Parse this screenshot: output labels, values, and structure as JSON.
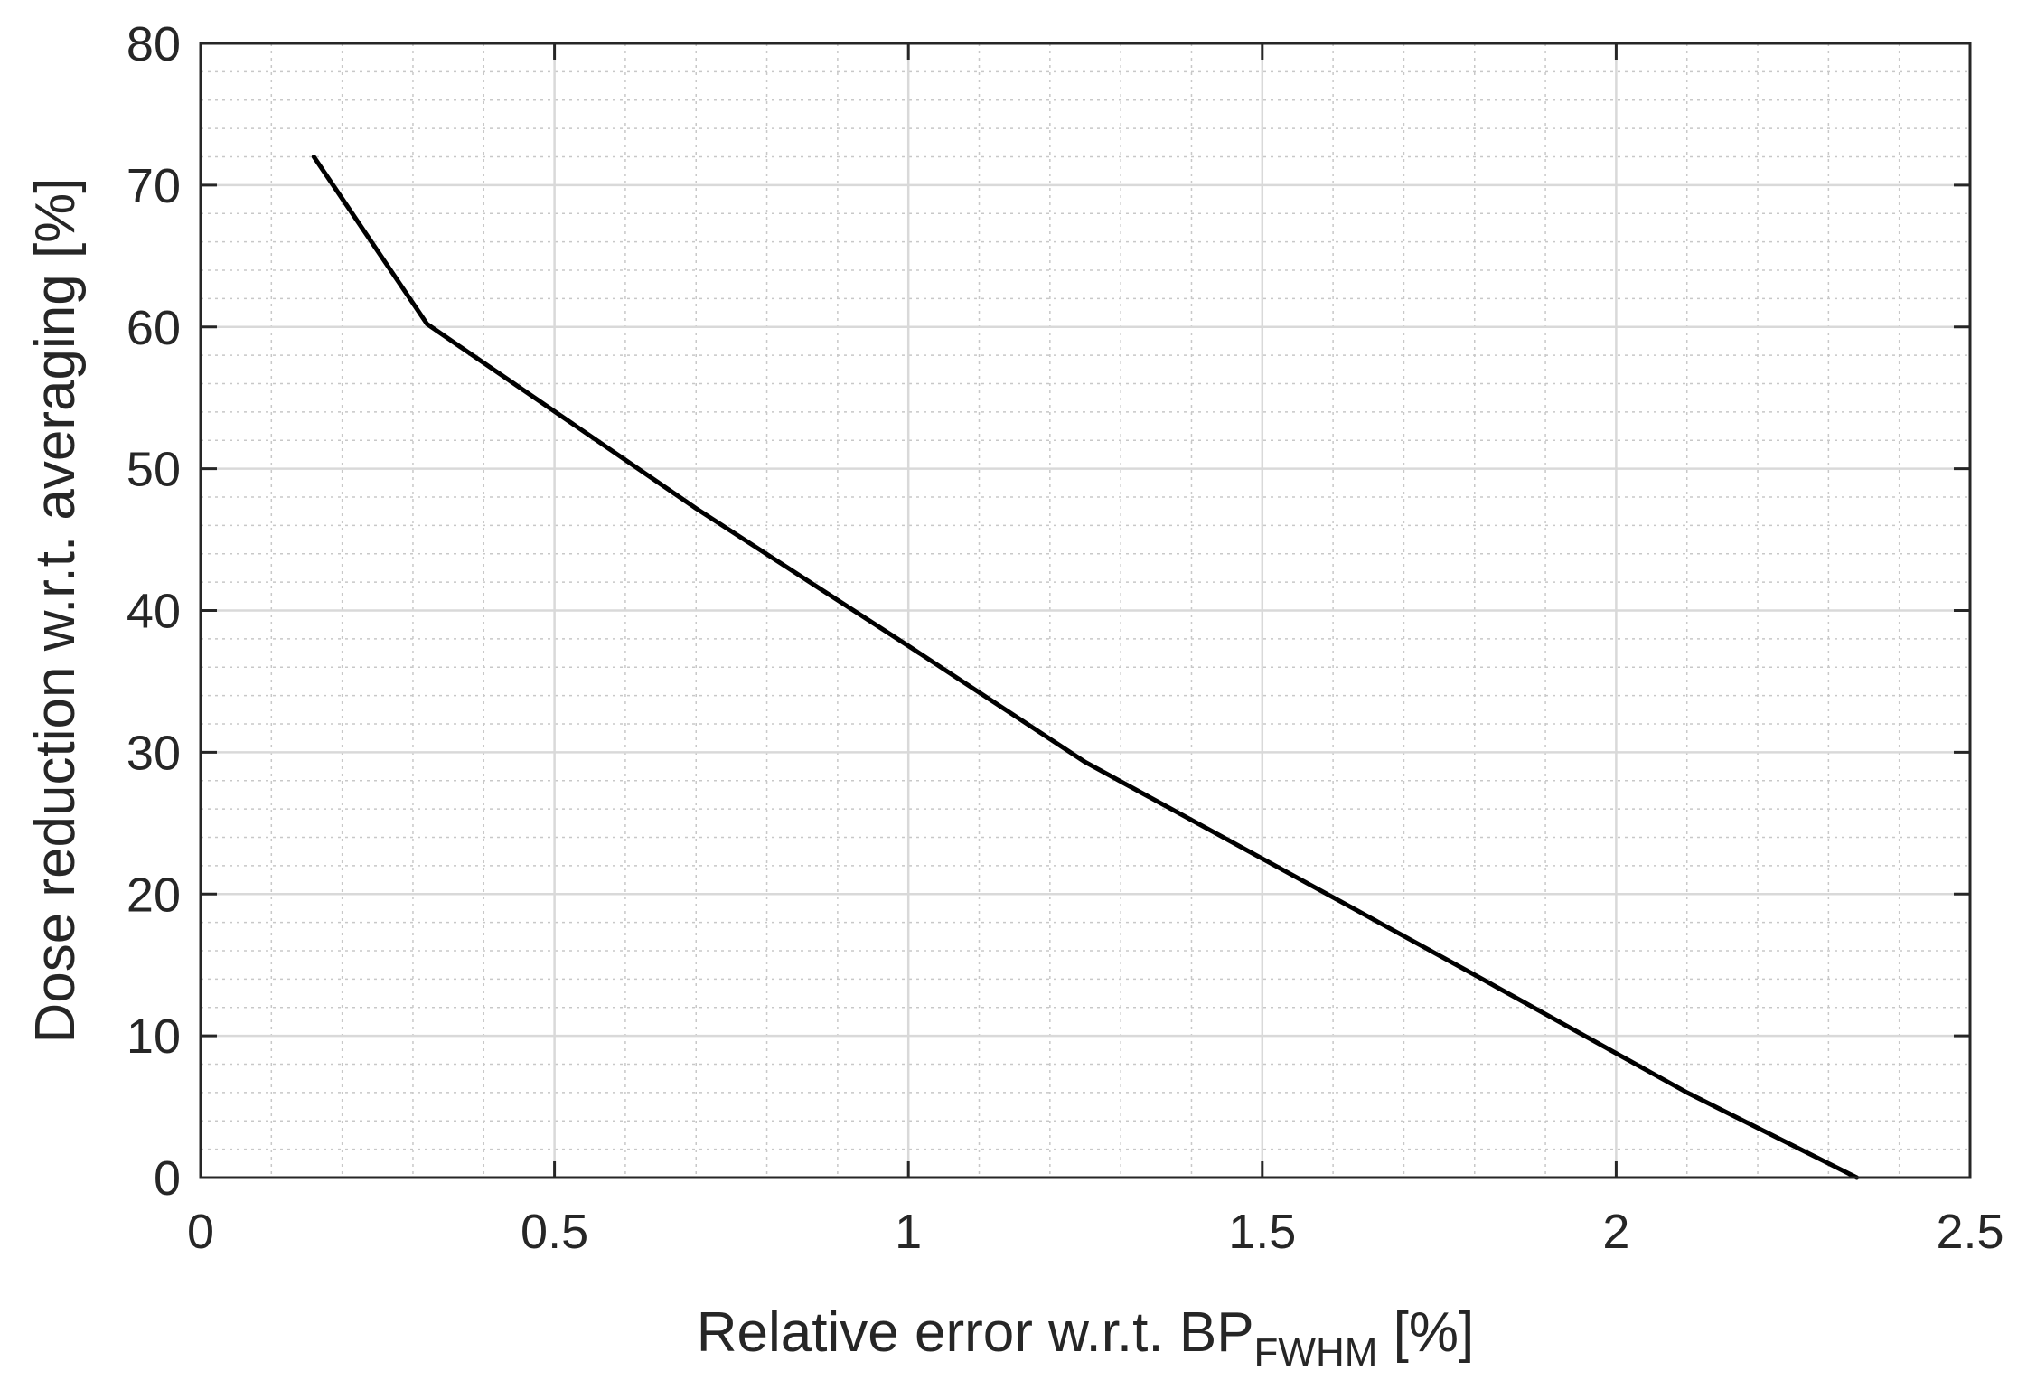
{
  "chart_data": {
    "type": "line",
    "xlabel_main": "Relative error w.r.t. BP",
    "xlabel_subscript": "FWHM",
    "xlabel_suffix": " [%]",
    "ylabel": "Dose reduction w.r.t. averaging [%]",
    "xlim": [
      0,
      2.5
    ],
    "ylim": [
      0,
      80
    ],
    "xticks": [
      0,
      0.5,
      1,
      1.5,
      2,
      2.5
    ],
    "xtick_labels": [
      "0",
      "0.5",
      "1",
      "1.5",
      "2",
      "2.5"
    ],
    "yticks": [
      0,
      10,
      20,
      30,
      40,
      50,
      60,
      70,
      80
    ],
    "ytick_labels": [
      "0",
      "10",
      "20",
      "30",
      "40",
      "50",
      "60",
      "70",
      "80"
    ],
    "grid": true,
    "minor_grid": true,
    "series": [
      {
        "x": [
          0.16,
          0.32,
          0.7,
          1.0,
          1.25,
          1.5,
          1.8,
          2.1,
          2.34
        ],
        "y": [
          72,
          60.2,
          47.2,
          37.5,
          29.3,
          22.5,
          14.3,
          6.0,
          0
        ],
        "color": "#000000"
      }
    ]
  }
}
